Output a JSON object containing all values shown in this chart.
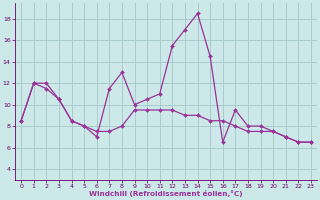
{
  "xlabel": "Windchill (Refroidissement éolien,°C)",
  "bg_color": "#cce8e8",
  "grid_color": "#aacccc",
  "line_color": "#993399",
  "xlim": [
    -0.5,
    23.5
  ],
  "ylim": [
    3,
    19.5
  ],
  "yticks": [
    4,
    6,
    8,
    10,
    12,
    14,
    16,
    18
  ],
  "xticks": [
    0,
    1,
    2,
    3,
    4,
    5,
    6,
    7,
    8,
    9,
    10,
    11,
    12,
    13,
    14,
    15,
    16,
    17,
    18,
    19,
    20,
    21,
    22,
    23
  ],
  "curve1_x": [
    0,
    1,
    2,
    3,
    4,
    5,
    6,
    7,
    8,
    9,
    10,
    11,
    12,
    13,
    14,
    15,
    16,
    17,
    18,
    19,
    20,
    21,
    22,
    23
  ],
  "curve1_y": [
    8.5,
    12.0,
    12.0,
    10.5,
    8.5,
    8.0,
    7.0,
    11.5,
    13.0,
    10.0,
    10.5,
    11.0,
    15.5,
    17.0,
    18.5,
    14.5,
    6.5,
    9.5,
    8.0,
    8.0,
    7.5,
    7.0,
    6.5,
    6.5
  ],
  "curve2_x": [
    0,
    1,
    2,
    3,
    4,
    5,
    6,
    7,
    8,
    9,
    10,
    11,
    12,
    13,
    14,
    15,
    16,
    17,
    18,
    19,
    20,
    21,
    22,
    23
  ],
  "curve2_y": [
    8.5,
    12.0,
    11.5,
    10.5,
    8.5,
    8.0,
    7.5,
    7.5,
    8.0,
    9.5,
    9.5,
    9.5,
    9.5,
    9.0,
    9.0,
    8.5,
    8.5,
    8.0,
    7.5,
    7.5,
    7.5,
    7.0,
    6.5,
    6.5
  ],
  "marker": "D",
  "markersize": 2.0,
  "linewidth": 0.9
}
